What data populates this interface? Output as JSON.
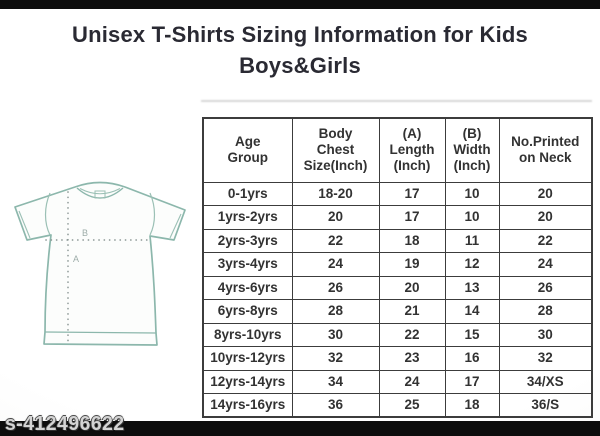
{
  "header": {
    "title_line1": "Unisex T-Shirts Sizing Information for Kids",
    "title_line2": "Boys&Girls"
  },
  "figure": {
    "description": "t-shirt measurement diagram",
    "length_label": "A",
    "width_label": "B",
    "outline_color": "#8cb7ac",
    "dotted_line_color": "#7f8c89"
  },
  "table": {
    "headers": [
      "Age\nGroup",
      "Body\nChest\nSize(Inch)",
      "(A)\nLength\n(Inch)",
      "(B)\nWidth\n(Inch)",
      "No.Printed\non Neck"
    ],
    "rows": [
      [
        "0-1yrs",
        "18-20",
        "17",
        "10",
        "20"
      ],
      [
        "1yrs-2yrs",
        "20",
        "17",
        "10",
        "20"
      ],
      [
        "2yrs-3yrs",
        "22",
        "18",
        "11",
        "22"
      ],
      [
        "3yrs-4yrs",
        "24",
        "19",
        "12",
        "24"
      ],
      [
        "4yrs-6yrs",
        "26",
        "20",
        "13",
        "26"
      ],
      [
        "6yrs-8yrs",
        "28",
        "21",
        "14",
        "28"
      ],
      [
        "8yrs-10yrs",
        "30",
        "22",
        "15",
        "30"
      ],
      [
        "10yrs-12yrs",
        "32",
        "23",
        "16",
        "32"
      ],
      [
        "12yrs-14yrs",
        "34",
        "24",
        "17",
        "34/XS"
      ],
      [
        "14yrs-16yrs",
        "36",
        "25",
        "18",
        "36/S"
      ]
    ]
  },
  "footer": {
    "watermark": "s-412496622"
  }
}
